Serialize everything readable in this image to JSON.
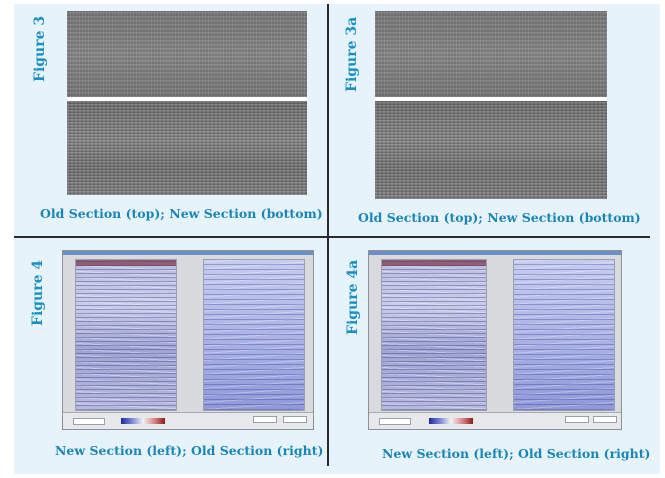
{
  "panels": [
    {
      "id": "fig3",
      "label": "Figure 3",
      "caption": "Old Section (top); New Section (bottom)"
    },
    {
      "id": "fig3a",
      "label": "Figure 3a",
      "caption": "Old Section (top); New Section (bottom)"
    },
    {
      "id": "fig4",
      "label": "Figure 4",
      "caption": "New Section (left); Old Section (right)"
    },
    {
      "id": "fig4a",
      "label": "Figure 4a",
      "caption": "New Section (left); Old Section (right)"
    }
  ],
  "colors": {
    "background": "#e6f3fa",
    "label": "#1a8fc4",
    "divider": "#2b2b2b"
  }
}
